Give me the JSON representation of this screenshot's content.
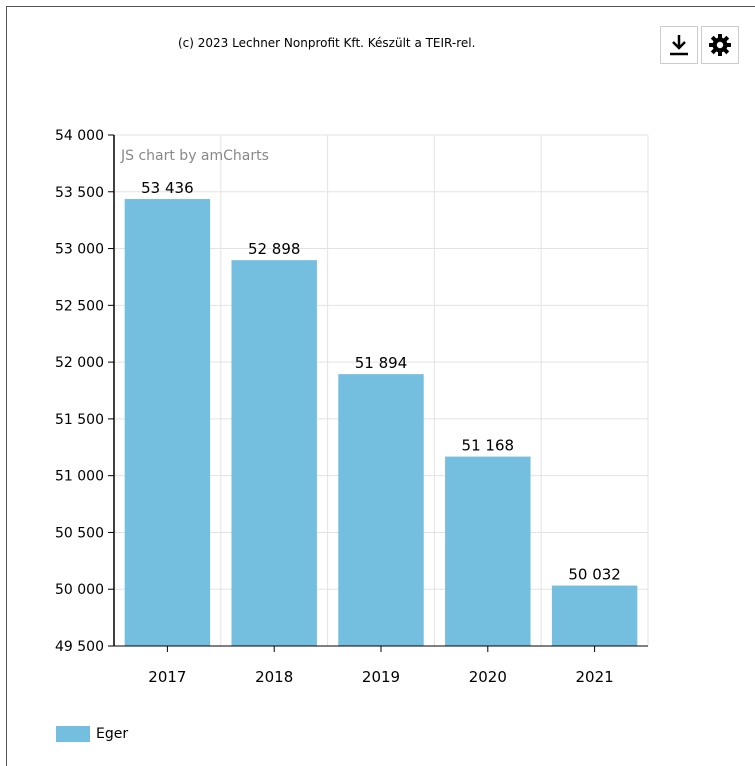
{
  "header": {
    "copyright": "(c) 2023 Lechner Nonprofit Kft. Készült a TEIR-rel."
  },
  "toolbar": {
    "download_icon": "download-icon",
    "settings_icon": "gear-icon"
  },
  "watermark": "JS chart by amCharts",
  "colors": {
    "bar": "#74bfe0",
    "grid": "#e3e3e3",
    "axis": "#000000"
  },
  "chart_data": {
    "type": "bar",
    "categories": [
      "2017",
      "2018",
      "2019",
      "2020",
      "2021"
    ],
    "series": [
      {
        "name": "Eger",
        "values": [
          53436,
          52898,
          51894,
          51168,
          50032
        ]
      }
    ],
    "value_labels": [
      "53 436",
      "52 898",
      "51 894",
      "51 168",
      "50 032"
    ],
    "ylim": [
      49500,
      54000
    ],
    "yticks": [
      49500,
      50000,
      50500,
      51000,
      51500,
      52000,
      52500,
      53000,
      53500,
      54000
    ],
    "ytick_labels": [
      "49 500",
      "50 000",
      "50 500",
      "51 000",
      "51 500",
      "52 000",
      "52 500",
      "53 000",
      "53 500",
      "54 000"
    ],
    "grid": true,
    "legend": "bottom-left"
  }
}
